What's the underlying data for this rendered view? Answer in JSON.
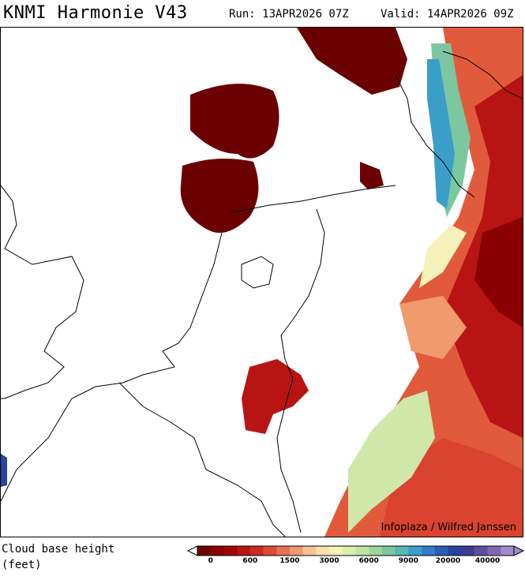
{
  "header": {
    "title": "KNMI Harmonie V43",
    "run": "Run: 13APR2026 07Z",
    "valid": "Valid: 14APR2026 09Z"
  },
  "map": {
    "credit": "Infoplaza / Wilfred Janssen",
    "region": "Netherlands / North Sea",
    "field": "Cloud base height"
  },
  "legend": {
    "label_line1": "Cloud base height",
    "label_line2": "(feet)",
    "tick_labels": [
      "0",
      "600",
      "1500",
      "3000",
      "6000",
      "9000",
      "20000",
      "40000"
    ],
    "colors": [
      "#6b0000",
      "#8a0000",
      "#a00808",
      "#b81414",
      "#cc2a22",
      "#dd4a35",
      "#e8704e",
      "#f09a6e",
      "#f6c390",
      "#f9e3ad",
      "#f4f2b8",
      "#dcefb0",
      "#bfe3a4",
      "#9fd59a",
      "#7cc79f",
      "#58b6b3",
      "#3b9ec8",
      "#2f7ec6",
      "#2a5eb6",
      "#2744a0",
      "#3d3c96",
      "#5d4ea4",
      "#8068b6",
      "#a08cc8"
    ]
  }
}
